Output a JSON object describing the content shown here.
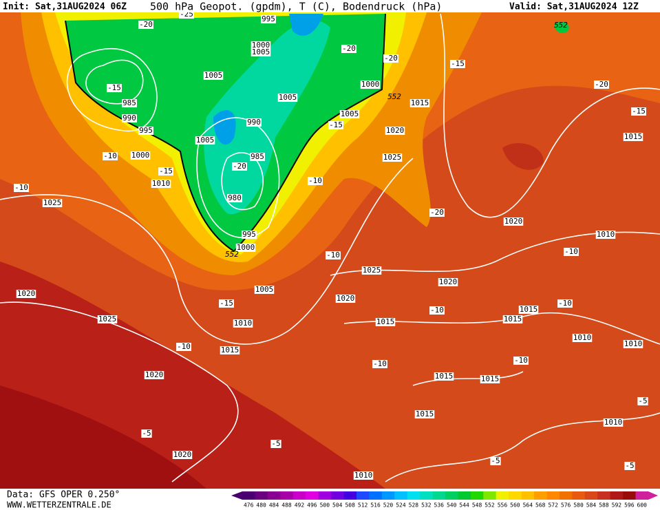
{
  "header": {
    "init": "Init: Sat,31AUG2024 06Z",
    "title": "500 hPa Geopot. (gpdm), T (C), Bodendruck (hPa)",
    "valid": "Valid: Sat,31AUG2024 12Z"
  },
  "footer": {
    "data_source": "Data: GFS OPER 0.250°",
    "website": "WWW.WETTERZENTRALE.DE"
  },
  "colorbar": {
    "labels": [
      476,
      480,
      484,
      488,
      492,
      496,
      500,
      504,
      508,
      512,
      516,
      520,
      524,
      528,
      532,
      536,
      540,
      544,
      548,
      552,
      556,
      560,
      564,
      568,
      572,
      576,
      580,
      584,
      588,
      592,
      596,
      600
    ],
    "colors": [
      "#4b0070",
      "#6a0080",
      "#8a0090",
      "#a800a8",
      "#c800c8",
      "#e000e0",
      "#a000e0",
      "#7000e0",
      "#4000e0",
      "#2048ff",
      "#0070ff",
      "#0098ff",
      "#00c0ff",
      "#00e0f0",
      "#00e0c0",
      "#00d890",
      "#00d060",
      "#00c830",
      "#20d800",
      "#80e800",
      "#f0f000",
      "#ffd800",
      "#ffc000",
      "#ffa000",
      "#ff8800",
      "#f07000",
      "#e85a10",
      "#d84818",
      "#c83020",
      "#b01818",
      "#980c0c",
      "#d0209c"
    ]
  },
  "isobar_labels": [
    1005,
    1005,
    1000,
    1005,
    995,
    1000,
    985,
    990,
    995,
    1000,
    1010,
    1025,
    1005,
    990,
    985,
    980,
    995,
    1000,
    1005,
    1010,
    1015,
    1020,
    1020,
    1025,
    1020,
    1015,
    1020,
    1025,
    1020,
    1010,
    1025,
    1020,
    1020,
    1015,
    1015,
    1015,
    1010,
    1010,
    1015,
    1015,
    1015,
    1010,
    1010,
    1015,
    1005
  ],
  "temperature_labels": [
    -20,
    -15,
    -10,
    -15,
    -10,
    -20,
    -20,
    -15,
    -10,
    -15,
    -20,
    -15,
    -20,
    -10,
    -10,
    -15,
    -10,
    -10,
    -10,
    -10,
    -10,
    -5,
    -5,
    -5,
    -5,
    -5,
    -20,
    -25
  ],
  "height_labels": [
    552,
    552,
    552
  ]
}
